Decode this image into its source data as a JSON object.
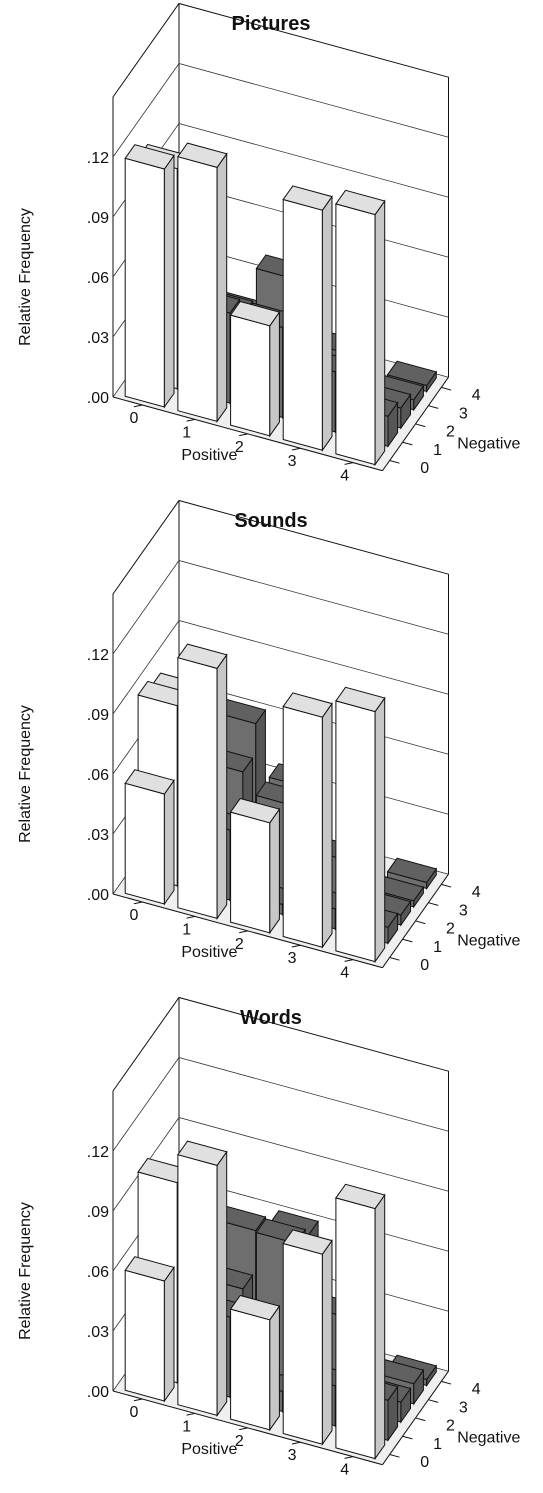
{
  "chart_data": [
    {
      "type": "bar",
      "title": "Pictures",
      "xlabel": "Positive",
      "ylabel": "Relative Frequency",
      "zlabel": "Negative",
      "positive_categories": [
        "0",
        "1",
        "2",
        "3",
        "4"
      ],
      "negative_categories": [
        "0",
        "1",
        "2",
        "3",
        "4"
      ],
      "y_ticks": [
        ".00",
        ".03",
        ".06",
        ".09",
        ".12"
      ],
      "ylim": [
        0,
        0.12
      ],
      "grid": true,
      "colors": {
        "zero_valence": "#ffffff",
        "mixed_valence": "#6e6e6e"
      },
      "bars": [
        {
          "positive": 0,
          "negative": 0,
          "value": 0.119
        },
        {
          "positive": 0,
          "negative": 1,
          "value": 0.11
        },
        {
          "positive": 0,
          "negative": 2,
          "value": 0.06
        },
        {
          "positive": 0,
          "negative": 3,
          "value": 0.04
        },
        {
          "positive": 0,
          "negative": 4,
          "value": 0.003
        },
        {
          "positive": 1,
          "negative": 0,
          "value": 0.127
        },
        {
          "positive": 1,
          "negative": 1,
          "value": 0.045
        },
        {
          "positive": 1,
          "negative": 2,
          "value": 0.035
        },
        {
          "positive": 1,
          "negative": 3,
          "value": 0.025
        },
        {
          "positive": 1,
          "negative": 4,
          "value": 0.004
        },
        {
          "positive": 2,
          "negative": 0,
          "value": 0.055
        },
        {
          "positive": 2,
          "negative": 1,
          "value": 0.045
        },
        {
          "positive": 2,
          "negative": 2,
          "value": 0.06
        },
        {
          "positive": 2,
          "negative": 3,
          "value": 0.03
        },
        {
          "positive": 2,
          "negative": 4,
          "value": 0.003
        },
        {
          "positive": 3,
          "negative": 0,
          "value": 0.12
        },
        {
          "positive": 3,
          "negative": 1,
          "value": 0.03
        },
        {
          "positive": 3,
          "negative": 2,
          "value": 0.03
        },
        {
          "positive": 3,
          "negative": 3,
          "value": 0.003
        },
        {
          "positive": 3,
          "negative": 4,
          "value": 0.004
        },
        {
          "positive": 4,
          "negative": 0,
          "value": 0.125
        },
        {
          "positive": 4,
          "negative": 1,
          "value": 0.015
        },
        {
          "positive": 4,
          "negative": 2,
          "value": 0.01
        },
        {
          "positive": 4,
          "negative": 3,
          "value": 0.005
        },
        {
          "positive": 4,
          "negative": 4,
          "value": 0.003
        }
      ]
    },
    {
      "type": "bar",
      "title": "Sounds",
      "xlabel": "Positive",
      "ylabel": "Relative Frequency",
      "zlabel": "Negative",
      "positive_categories": [
        "0",
        "1",
        "2",
        "3",
        "4"
      ],
      "negative_categories": [
        "0",
        "1",
        "2",
        "3",
        "4"
      ],
      "y_ticks": [
        ".00",
        ".03",
        ".06",
        ".09",
        ".12"
      ],
      "ylim": [
        0,
        0.12
      ],
      "grid": true,
      "colors": {
        "zero_valence": "#ffffff",
        "mixed_valence": "#6e6e6e"
      },
      "bars": [
        {
          "positive": 0,
          "negative": 0,
          "value": 0.055
        },
        {
          "positive": 0,
          "negative": 1,
          "value": 0.09
        },
        {
          "positive": 0,
          "negative": 2,
          "value": 0.085
        },
        {
          "positive": 0,
          "negative": 3,
          "value": 0.065
        },
        {
          "positive": 0,
          "negative": 4,
          "value": 0.003
        },
        {
          "positive": 1,
          "negative": 0,
          "value": 0.125
        },
        {
          "positive": 1,
          "negative": 1,
          "value": 0.035
        },
        {
          "positive": 1,
          "negative": 2,
          "value": 0.055
        },
        {
          "positive": 1,
          "negative": 3,
          "value": 0.07
        },
        {
          "positive": 1,
          "negative": 4,
          "value": 0.003
        },
        {
          "positive": 2,
          "negative": 0,
          "value": 0.055
        },
        {
          "positive": 2,
          "negative": 1,
          "value": 0.005
        },
        {
          "positive": 2,
          "negative": 2,
          "value": 0.045
        },
        {
          "positive": 2,
          "negative": 3,
          "value": 0.045
        },
        {
          "positive": 2,
          "negative": 4,
          "value": 0.003
        },
        {
          "positive": 3,
          "negative": 0,
          "value": 0.115
        },
        {
          "positive": 3,
          "negative": 1,
          "value": 0.01
        },
        {
          "positive": 3,
          "negative": 2,
          "value": 0.025
        },
        {
          "positive": 3,
          "negative": 3,
          "value": 0.003
        },
        {
          "positive": 3,
          "negative": 4,
          "value": 0.003
        },
        {
          "positive": 4,
          "negative": 0,
          "value": 0.125
        },
        {
          "positive": 4,
          "negative": 1,
          "value": 0.008
        },
        {
          "positive": 4,
          "negative": 2,
          "value": 0.005
        },
        {
          "positive": 4,
          "negative": 3,
          "value": 0.003
        },
        {
          "positive": 4,
          "negative": 4,
          "value": 0.003
        }
      ]
    },
    {
      "type": "bar",
      "title": "Words",
      "xlabel": "Positive",
      "ylabel": "Relative Frequency",
      "zlabel": "Negative",
      "positive_categories": [
        "0",
        "1",
        "2",
        "3",
        "4"
      ],
      "negative_categories": [
        "0",
        "1",
        "2",
        "3",
        "4"
      ],
      "y_ticks": [
        ".00",
        ".03",
        ".06",
        ".09",
        ".12"
      ],
      "ylim": [
        0,
        0.12
      ],
      "grid": true,
      "colors": {
        "zero_valence": "#ffffff",
        "mixed_valence": "#6e6e6e"
      },
      "bars": [
        {
          "positive": 0,
          "negative": 0,
          "value": 0.06
        },
        {
          "positive": 0,
          "negative": 1,
          "value": 0.1
        },
        {
          "positive": 0,
          "negative": 2,
          "value": 0.085
        },
        {
          "positive": 0,
          "negative": 3,
          "value": 0.055
        },
        {
          "positive": 0,
          "negative": 4,
          "value": 0.003
        },
        {
          "positive": 1,
          "negative": 0,
          "value": 0.125
        },
        {
          "positive": 1,
          "negative": 1,
          "value": 0.04
        },
        {
          "positive": 1,
          "negative": 2,
          "value": 0.045
        },
        {
          "positive": 1,
          "negative": 3,
          "value": 0.065
        },
        {
          "positive": 1,
          "negative": 4,
          "value": 0.003
        },
        {
          "positive": 2,
          "negative": 0,
          "value": 0.055
        },
        {
          "positive": 2,
          "negative": 1,
          "value": 0.01
        },
        {
          "positive": 2,
          "negative": 2,
          "value": 0.075
        },
        {
          "positive": 2,
          "negative": 3,
          "value": 0.07
        },
        {
          "positive": 2,
          "negative": 4,
          "value": 0.003
        },
        {
          "positive": 3,
          "negative": 0,
          "value": 0.095
        },
        {
          "positive": 3,
          "negative": 1,
          "value": 0.02
        },
        {
          "positive": 3,
          "negative": 2,
          "value": 0.045
        },
        {
          "positive": 3,
          "negative": 3,
          "value": 0.003
        },
        {
          "positive": 3,
          "negative": 4,
          "value": 0.003
        },
        {
          "positive": 4,
          "negative": 0,
          "value": 0.125
        },
        {
          "positive": 4,
          "negative": 1,
          "value": 0.02
        },
        {
          "positive": 4,
          "negative": 2,
          "value": 0.01
        },
        {
          "positive": 4,
          "negative": 3,
          "value": 0.01
        },
        {
          "positive": 4,
          "negative": 4,
          "value": 0.003
        }
      ]
    }
  ]
}
